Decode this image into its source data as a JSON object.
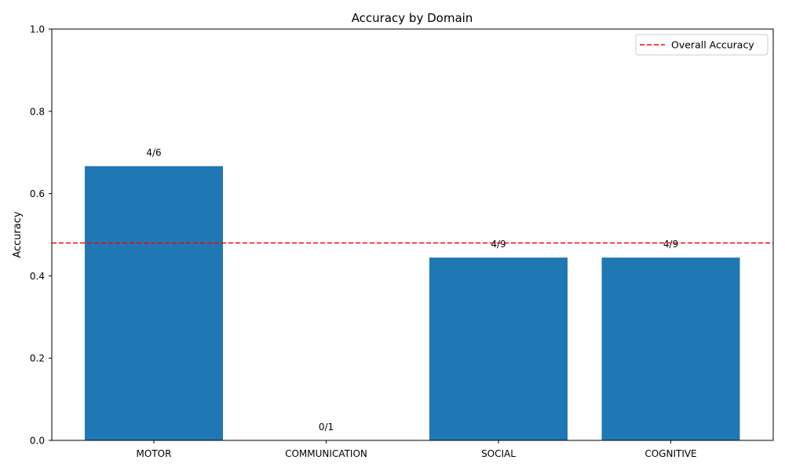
{
  "chart_data": {
    "type": "bar",
    "title": "Accuracy by Domain",
    "xlabel": "",
    "ylabel": "Accuracy",
    "categories": [
      "MOTOR",
      "COMMUNICATION",
      "SOCIAL",
      "COGNITIVE"
    ],
    "values": [
      0.6667,
      0.0,
      0.4444,
      0.4444
    ],
    "bar_labels": [
      "4/6",
      "0/1",
      "4/9",
      "4/9"
    ],
    "bar_color": "#1f77b4",
    "ylim": [
      0,
      1
    ],
    "yticks": [
      0.0,
      0.2,
      0.4,
      0.6,
      0.8,
      1.0
    ],
    "ytick_labels": [
      "0.0",
      "0.2",
      "0.4",
      "0.6",
      "0.8",
      "1.0"
    ],
    "reference_line": {
      "name": "Overall Accuracy",
      "value": 0.48,
      "color": "#ff0000",
      "style": "dashed"
    },
    "legend": {
      "entries": [
        "Overall Accuracy"
      ],
      "placement": "top-right"
    },
    "grid": false
  }
}
